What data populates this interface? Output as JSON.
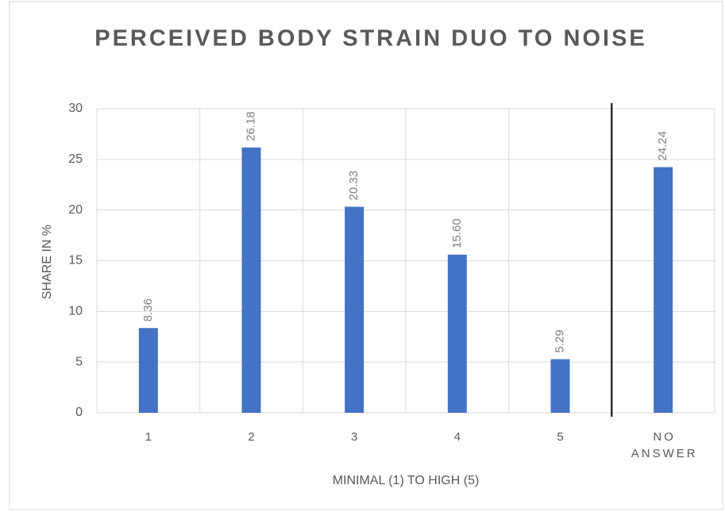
{
  "chart_data": {
    "type": "bar",
    "title": "PERCEIVED BODY STRAIN DUO TO NOISE",
    "x_label": "MINIMAL (1) TO HIGH (5)",
    "y_label": "SHARE IN %",
    "categories": [
      "1",
      "2",
      "3",
      "4",
      "5",
      "NO ANSWER"
    ],
    "values": [
      8.36,
      26.18,
      20.33,
      15.6,
      5.29,
      24.24
    ],
    "value_labels": [
      "8.36",
      "26.18",
      "20.33",
      "15.60",
      "5.29",
      "24.24"
    ],
    "color": "#4472c4",
    "ylim": [
      0,
      30
    ],
    "yticks": [
      0,
      5,
      10,
      15,
      20,
      25,
      30
    ],
    "grid": true
  }
}
